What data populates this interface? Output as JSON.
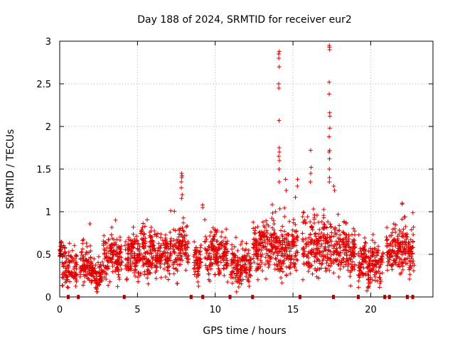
{
  "chart_data": {
    "type": "scatter",
    "title": "Day 188 of 2024, SRMTID for receiver eur2",
    "xlabel": "GPS time / hours",
    "ylabel": "SRMTID / TECUs",
    "xlim": [
      0,
      24
    ],
    "ylim": [
      0,
      3
    ],
    "xticks": [
      0,
      5,
      10,
      15,
      20
    ],
    "yticks": [
      0,
      0.5,
      1,
      1.5,
      2,
      2.5,
      3
    ],
    "ytick_labels": [
      "0",
      "0.5",
      "1",
      "1.5",
      "2",
      "2.5",
      "3"
    ],
    "grid": true,
    "marker": "+",
    "colors": {
      "series": "#e00000",
      "gaps": "#e00000",
      "grid": "#b0b0b0",
      "axes": "#000000"
    },
    "series": [
      {
        "name": "SRMTID",
        "segments": [
          {
            "x": [
              0.0,
              0.15
            ],
            "base": 0.5,
            "spread": 0.08
          },
          {
            "x": [
              0.15,
              1.1
            ],
            "base": 0.35,
            "spread": 0.2
          },
          {
            "x": [
              1.3,
              2.0
            ],
            "base": 0.4,
            "spread": 0.2
          },
          {
            "x": [
              2.0,
              2.8
            ],
            "base": 0.25,
            "spread": 0.12
          },
          {
            "x": [
              2.8,
              4.0
            ],
            "base": 0.45,
            "spread": 0.2
          },
          {
            "x": [
              4.2,
              7.6
            ],
            "base": 0.5,
            "spread": 0.22
          },
          {
            "x": [
              7.6,
              8.3
            ],
            "base": 0.6,
            "spread": 0.2
          },
          {
            "x": [
              8.6,
              9.1
            ],
            "base": 0.45,
            "spread": 0.22
          },
          {
            "x": [
              9.3,
              10.8
            ],
            "base": 0.5,
            "spread": 0.22
          },
          {
            "x": [
              11.0,
              12.3
            ],
            "base": 0.35,
            "spread": 0.18
          },
          {
            "x": [
              12.4,
              13.8
            ],
            "base": 0.6,
            "spread": 0.25
          },
          {
            "x": [
              13.8,
              15.3
            ],
            "base": 0.55,
            "spread": 0.3
          },
          {
            "x": [
              15.6,
              17.5
            ],
            "base": 0.6,
            "spread": 0.3
          },
          {
            "x": [
              17.6,
              19.0
            ],
            "base": 0.55,
            "spread": 0.25
          },
          {
            "x": [
              19.2,
              20.8
            ],
            "base": 0.4,
            "spread": 0.2
          },
          {
            "x": [
              21.0,
              22.8
            ],
            "base": 0.55,
            "spread": 0.25
          }
        ],
        "spikes": [
          {
            "x": 7.85,
            "y": [
              1.45,
              1.42,
              1.4,
              1.35,
              1.28,
              1.2
            ]
          },
          {
            "x": 9.2,
            "y": [
              1.08,
              1.05
            ]
          },
          {
            "x": 14.1,
            "y": [
              2.88,
              2.85,
              2.8,
              2.7,
              2.5,
              2.45,
              2.07,
              1.75,
              1.7,
              1.65,
              1.6,
              1.5,
              1.35
            ]
          },
          {
            "x": 14.55,
            "y": [
              1.38,
              1.25
            ]
          },
          {
            "x": 15.3,
            "y": [
              1.38,
              1.3
            ]
          },
          {
            "x": 16.15,
            "y": [
              1.72,
              1.52,
              1.45,
              1.35
            ]
          },
          {
            "x": 17.35,
            "y": [
              2.95,
              2.93,
              2.9,
              2.52,
              2.38,
              2.16,
              2.12,
              1.98,
              1.88,
              1.72,
              1.7,
              1.62,
              1.5,
              1.4,
              1.35
            ]
          },
          {
            "x": 17.65,
            "y": [
              1.3,
              1.25
            ]
          },
          {
            "x": 22.0,
            "y": [
              1.1,
              1.09
            ]
          }
        ]
      }
    ],
    "zero_markers": [
      0.55,
      1.2,
      4.15,
      8.45,
      9.2,
      10.95,
      12.4,
      15.45,
      17.6,
      19.2,
      20.9,
      21.2,
      22.35,
      22.7
    ]
  }
}
